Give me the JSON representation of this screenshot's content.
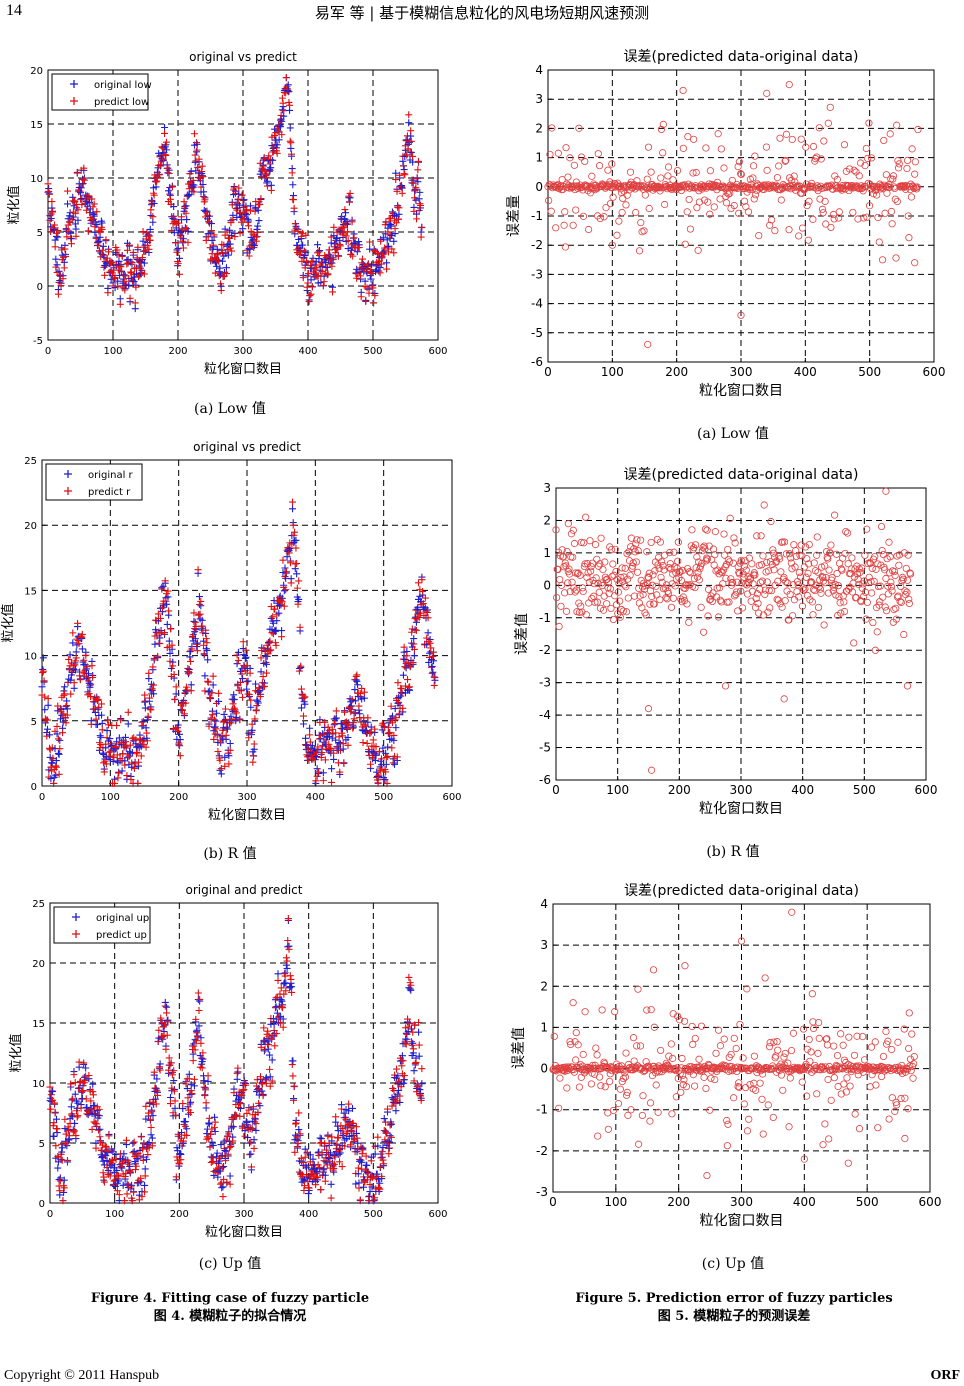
{
  "header": {
    "page_number": "14",
    "running_title": "易军 等 | 基于模糊信息粒化的风电场短期风速预测"
  },
  "subcaptions": {
    "left_a": "(a) Low 值",
    "left_b": "(b) R 值",
    "left_c": "(c) Up 值",
    "right_a": "(a) Low 值",
    "right_b": "(b) R 值",
    "right_c": "(c) Up 值"
  },
  "figure_captions": {
    "fig4_en": "Figure 4. Fitting case of fuzzy particle",
    "fig4_zh": "图 4. 模糊粒子的拟合情况",
    "fig5_en": "Figure 5. Prediction error of fuzzy particles",
    "fig5_zh": "图 5. 模糊粒子的预测误差"
  },
  "footer": {
    "copyright": "Copyright © 2011 Hanspub",
    "brand": "ORF"
  },
  "colors": {
    "original": "#1f1fd0",
    "predict": "#e01010",
    "error_marker": "#e04040",
    "grid": "#000000"
  },
  "chart_data": [
    {
      "id": "fit_low",
      "type": "scatter",
      "title": "original vs predict",
      "xlabel": "粒化窗口数目",
      "ylabel": "粒化值",
      "xlim": [
        0,
        600
      ],
      "ylim": [
        -5,
        20
      ],
      "xticks": [
        0,
        100,
        200,
        300,
        400,
        500,
        600
      ],
      "yticks": [
        -5,
        0,
        5,
        10,
        15,
        20
      ],
      "grid": true,
      "legend": {
        "position": "top-left",
        "entries": [
          "original low",
          "predict low"
        ]
      },
      "n_points": 575,
      "profile_x": [
        0,
        10,
        20,
        30,
        40,
        55,
        70,
        85,
        100,
        120,
        140,
        155,
        170,
        180,
        190,
        200,
        215,
        230,
        245,
        260,
        275,
        290,
        300,
        310,
        320,
        330,
        345,
        360,
        370,
        380,
        390,
        400,
        420,
        440,
        460,
        470,
        480,
        490,
        500,
        510,
        520,
        530,
        545,
        555,
        565,
        575
      ],
      "profile_y": [
        9,
        4,
        1.5,
        5,
        7,
        9.5,
        6,
        3,
        1.5,
        1.2,
        1,
        5,
        11,
        13.5,
        8,
        3,
        8,
        11.5,
        6,
        2,
        3,
        8,
        7,
        4,
        6,
        10.5,
        12,
        16,
        18,
        5,
        3,
        1,
        1.5,
        3,
        6,
        4,
        2,
        1,
        0.5,
        2,
        4,
        6,
        10,
        13,
        9,
        7
      ],
      "spread": 1.6,
      "predict_noise": 1.0,
      "seed": 11
    },
    {
      "id": "fit_r",
      "type": "scatter",
      "title": "original vs predict",
      "xlabel": "粒化窗口数目",
      "ylabel": "粒化值",
      "xlim": [
        0,
        600
      ],
      "ylim": [
        0,
        25
      ],
      "xticks": [
        0,
        100,
        200,
        300,
        400,
        500,
        600
      ],
      "yticks": [
        0,
        5,
        10,
        15,
        20,
        25
      ],
      "grid": true,
      "legend": {
        "position": "top-left",
        "entries": [
          "original r",
          "predict r"
        ]
      },
      "n_points": 575,
      "profile_x": [
        0,
        10,
        20,
        30,
        40,
        55,
        70,
        85,
        100,
        120,
        140,
        155,
        170,
        180,
        190,
        200,
        215,
        230,
        245,
        260,
        275,
        290,
        300,
        310,
        320,
        330,
        345,
        360,
        370,
        380,
        390,
        400,
        420,
        440,
        460,
        470,
        480,
        490,
        500,
        510,
        520,
        530,
        545,
        555,
        565,
        575
      ],
      "profile_y": [
        9,
        4,
        1.5,
        6,
        8,
        10,
        7,
        4,
        2.5,
        2,
        2,
        6,
        12,
        15,
        9,
        3,
        9,
        14,
        7,
        3,
        4,
        9,
        8,
        5,
        7,
        11,
        13,
        17,
        20,
        6,
        3,
        2,
        2.5,
        4,
        7,
        5,
        3,
        2,
        1.5,
        3,
        5,
        7,
        11,
        15,
        11,
        9
      ],
      "spread": 1.8,
      "predict_noise": 1.0,
      "seed": 23
    },
    {
      "id": "fit_up",
      "type": "scatter",
      "title": "original and predict",
      "xlabel": "粒化窗口数目",
      "ylabel": "粒化值",
      "xlim": [
        0,
        600
      ],
      "ylim": [
        0,
        25
      ],
      "xticks": [
        0,
        100,
        200,
        300,
        400,
        500,
        600
      ],
      "yticks": [
        0,
        5,
        10,
        15,
        20,
        25
      ],
      "grid": true,
      "legend": {
        "position": "top-left",
        "entries": [
          "original up",
          "predict up"
        ]
      },
      "n_points": 575,
      "profile_x": [
        0,
        10,
        20,
        30,
        40,
        55,
        70,
        85,
        100,
        120,
        140,
        155,
        170,
        180,
        190,
        200,
        215,
        230,
        245,
        260,
        275,
        290,
        300,
        310,
        320,
        330,
        345,
        360,
        370,
        380,
        390,
        400,
        420,
        440,
        460,
        470,
        480,
        490,
        500,
        510,
        520,
        530,
        545,
        555,
        565,
        575
      ],
      "profile_y": [
        10,
        5,
        2,
        6.5,
        8.5,
        10.5,
        7,
        4,
        2.5,
        2,
        2,
        6,
        12.5,
        15,
        9,
        3.5,
        9.5,
        14.5,
        7,
        3,
        4,
        9.5,
        8.5,
        5,
        7,
        12,
        14,
        18,
        21,
        6,
        3,
        2.5,
        3,
        4.5,
        7.5,
        5,
        3,
        2,
        1.5,
        3.5,
        5.5,
        7.5,
        12,
        15.5,
        12,
        10
      ],
      "spread": 1.9,
      "predict_noise": 1.0,
      "seed": 37
    },
    {
      "id": "err_low",
      "type": "scatter",
      "title": "误差(predicted data-original data)",
      "xlabel": "粒化窗口数目",
      "ylabel": "误差量",
      "xlim": [
        0,
        600
      ],
      "ylim": [
        -6,
        4
      ],
      "xticks": [
        0,
        100,
        200,
        300,
        400,
        500,
        600
      ],
      "yticks": [
        -6,
        -5,
        -4,
        -3,
        -2,
        -1,
        0,
        1,
        2,
        3,
        4
      ],
      "grid": true,
      "n_points": 575,
      "center": 0,
      "band_fraction": 0.6,
      "band_spread": 0.05,
      "scatter_spread": 0.9,
      "outliers": [
        [
          155,
          -5.4
        ],
        [
          300,
          -4.4
        ],
        [
          375,
          3.5
        ],
        [
          340,
          3.2
        ],
        [
          210,
          3.3
        ],
        [
          100,
          -2.0
        ],
        [
          520,
          -2.5
        ],
        [
          570,
          -2.6
        ]
      ],
      "seed": 5
    },
    {
      "id": "err_r",
      "type": "scatter",
      "title": "误差(predicted data-original data)",
      "xlabel": "粒化窗口数目",
      "ylabel": "误差值",
      "xlim": [
        0,
        600
      ],
      "ylim": [
        -6,
        3
      ],
      "xticks": [
        0,
        100,
        200,
        300,
        400,
        500,
        600
      ],
      "yticks": [
        -6,
        -5,
        -4,
        -3,
        -2,
        -1,
        0,
        1,
        2,
        3
      ],
      "grid": true,
      "n_points": 575,
      "center": 0.2,
      "band_fraction": 0.0,
      "band_spread": 0.1,
      "scatter_spread": 0.7,
      "outliers": [
        [
          155,
          -5.7
        ],
        [
          150,
          -3.8
        ],
        [
          275,
          -3.1
        ],
        [
          370,
          -3.5
        ],
        [
          535,
          2.9
        ],
        [
          570,
          -3.1
        ],
        [
          20,
          1.9
        ],
        [
          245,
          1.7
        ]
      ],
      "seed": 9
    },
    {
      "id": "err_up",
      "type": "scatter",
      "title": "误差(predicted data-original data)",
      "xlabel": "粒化窗口数目",
      "ylabel": "误差值",
      "xlim": [
        0,
        600
      ],
      "ylim": [
        -3,
        4
      ],
      "xticks": [
        0,
        100,
        200,
        300,
        400,
        500,
        600
      ],
      "yticks": [
        -3,
        -2,
        -1,
        0,
        1,
        2,
        3,
        4
      ],
      "grid": true,
      "n_points": 575,
      "center": 0,
      "band_fraction": 0.6,
      "band_spread": 0.04,
      "scatter_spread": 0.8,
      "outliers": [
        [
          380,
          3.8
        ],
        [
          300,
          3.1
        ],
        [
          245,
          -2.6
        ],
        [
          160,
          2.4
        ],
        [
          210,
          2.5
        ],
        [
          400,
          -2.2
        ],
        [
          470,
          -2.3
        ],
        [
          560,
          -1.7
        ]
      ],
      "seed": 17
    }
  ]
}
